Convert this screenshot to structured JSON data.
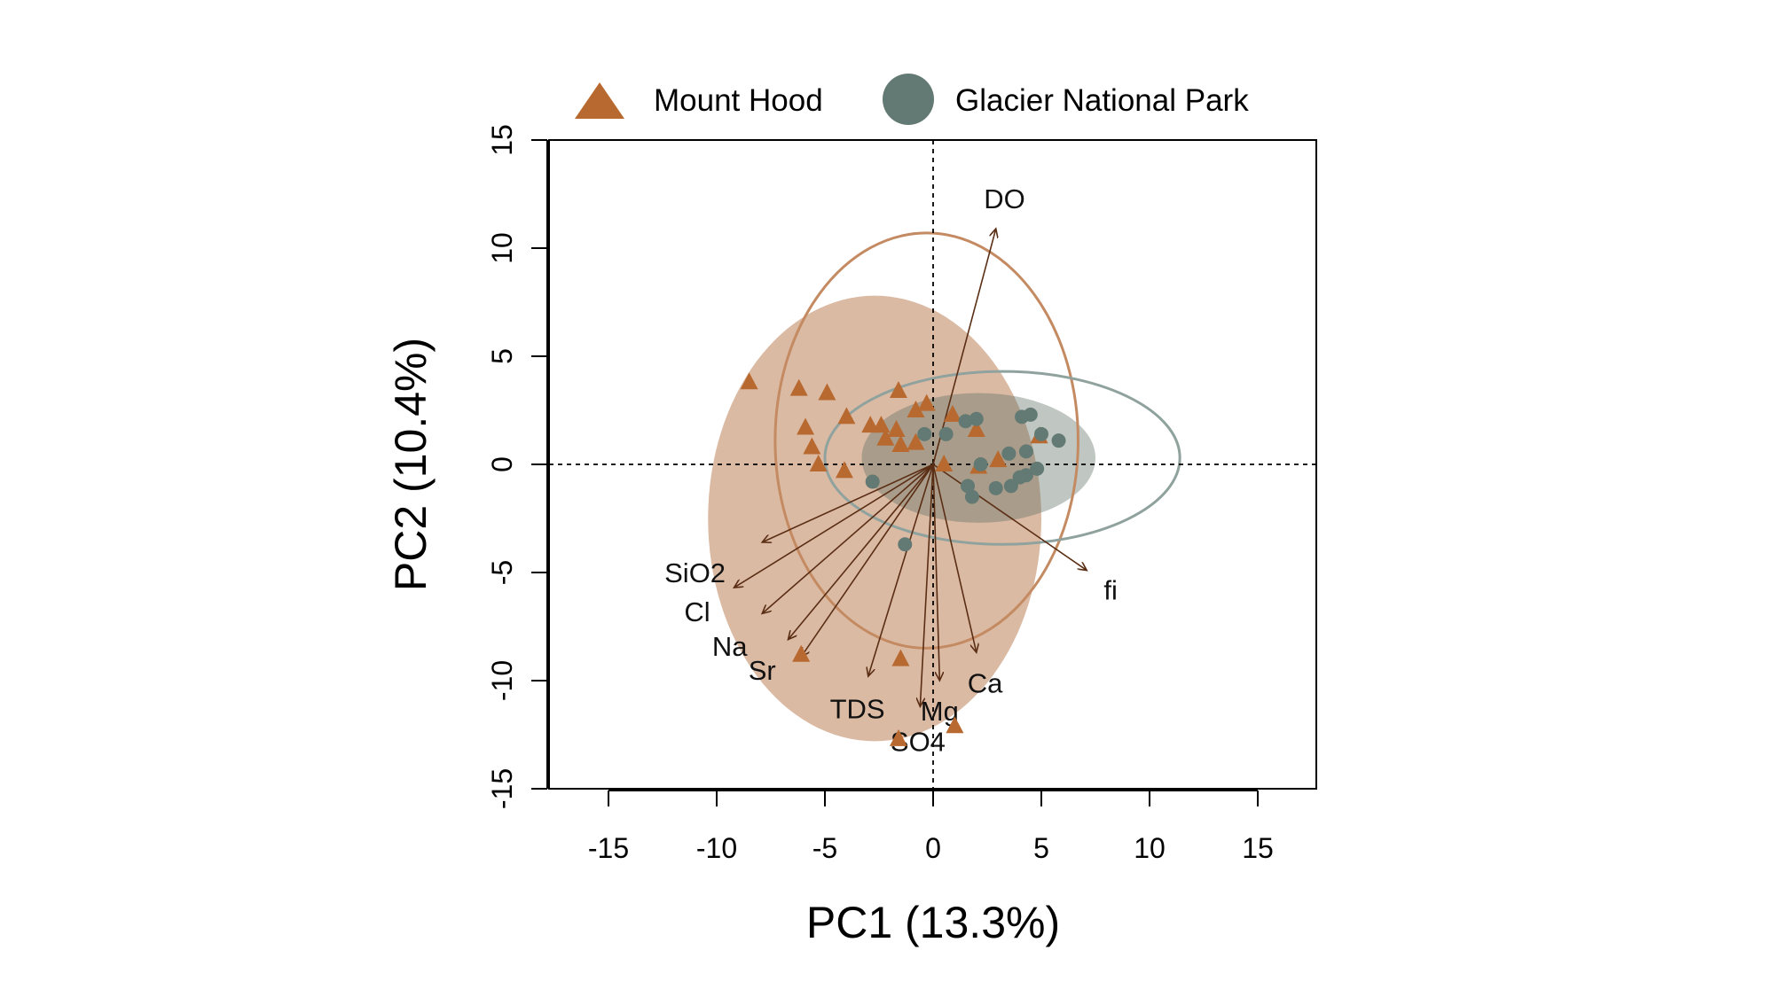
{
  "chart_data": {
    "type": "scatter",
    "subtype": "pca-biplot",
    "title": "",
    "xlabel": "PC1 (13.3%)",
    "ylabel": "PC2 (10.4%)",
    "xlim": [
      -18,
      17.5
    ],
    "ylim": [
      -15,
      15
    ],
    "xticks": [
      -15,
      -10,
      -5,
      0,
      5,
      10,
      15
    ],
    "yticks": [
      -15,
      -10,
      -5,
      0,
      5,
      10,
      15
    ],
    "xtick_labels": [
      "-15",
      "-10",
      "-5",
      "0",
      "5",
      "10",
      "15"
    ],
    "ytick_labels": [
      "-15",
      "-10",
      "-5",
      "0",
      "5",
      "10",
      "15"
    ],
    "grid": false,
    "reference_lines": {
      "x": 0,
      "y": 0,
      "style": "dotted"
    },
    "legend": {
      "placement": "top",
      "entries": [
        {
          "label": "Mount Hood",
          "marker": "triangle",
          "color": "#b8692f"
        },
        {
          "label": "Glacier National Park",
          "marker": "circle",
          "color": "#627a73"
        }
      ]
    },
    "series": [
      {
        "name": "Mount Hood",
        "marker": "triangle",
        "color": "#b8692f",
        "points": [
          [
            -8.5,
            3.8
          ],
          [
            -6.2,
            3.5
          ],
          [
            -4.9,
            3.3
          ],
          [
            -5.9,
            1.7
          ],
          [
            -5.6,
            0.8
          ],
          [
            -5.3,
            0.0
          ],
          [
            -4.1,
            -0.3
          ],
          [
            -4.0,
            2.2
          ],
          [
            -2.9,
            1.8
          ],
          [
            -2.4,
            1.8
          ],
          [
            -2.2,
            1.2
          ],
          [
            -1.7,
            1.6
          ],
          [
            -1.6,
            3.4
          ],
          [
            -1.5,
            0.9
          ],
          [
            -0.8,
            1.0
          ],
          [
            -0.8,
            2.5
          ],
          [
            -0.3,
            2.8
          ],
          [
            0.5,
            0.0
          ],
          [
            0.9,
            2.3
          ],
          [
            2.0,
            1.6
          ],
          [
            2.1,
            -0.1
          ],
          [
            3.0,
            0.2
          ],
          [
            4.9,
            1.3
          ],
          [
            -6.1,
            -8.8
          ],
          [
            -1.5,
            -9.0
          ],
          [
            1.0,
            -12.1
          ],
          [
            -1.6,
            -12.7
          ]
        ],
        "ellipse": {
          "center": [
            -2.7,
            -2.5
          ],
          "semi_axes": [
            7.7,
            10.3
          ]
        },
        "confidence_ellipse": {
          "center": [
            -0.3,
            1.1
          ],
          "semi_axes": [
            7.0,
            9.6
          ]
        }
      },
      {
        "name": "Glacier National Park",
        "marker": "circle",
        "color": "#627a73",
        "points": [
          [
            -0.4,
            1.4
          ],
          [
            0.6,
            1.4
          ],
          [
            1.5,
            2.0
          ],
          [
            2.0,
            2.1
          ],
          [
            4.1,
            2.2
          ],
          [
            4.5,
            2.3
          ],
          [
            5.0,
            1.4
          ],
          [
            5.8,
            1.1
          ],
          [
            3.5,
            0.5
          ],
          [
            4.3,
            0.6
          ],
          [
            2.2,
            0.0
          ],
          [
            4.8,
            -0.2
          ],
          [
            4.3,
            -0.5
          ],
          [
            4.0,
            -0.6
          ],
          [
            3.6,
            -1.0
          ],
          [
            2.9,
            -1.1
          ],
          [
            1.6,
            -1.0
          ],
          [
            1.8,
            -1.5
          ],
          [
            -2.8,
            -0.8
          ],
          [
            -1.3,
            -3.7
          ]
        ],
        "ellipse": {
          "center": [
            2.1,
            0.3
          ],
          "semi_axes": [
            5.4,
            3.0
          ]
        },
        "confidence_ellipse": {
          "center": [
            3.2,
            0.3
          ],
          "semi_axes": [
            8.2,
            4.0
          ]
        }
      }
    ],
    "loadings": [
      {
        "label": "DO",
        "x": 2.9,
        "y": 10.9,
        "label_pos": [
          3.3,
          12.3
        ]
      },
      {
        "label": "fi",
        "x": 7.1,
        "y": -4.9,
        "label_pos": [
          8.2,
          -5.8
        ]
      },
      {
        "label": "SiO2",
        "x": -9.2,
        "y": -5.7,
        "label_pos": [
          -11.0,
          -5.0
        ]
      },
      {
        "label": "SiO2",
        "x": -7.9,
        "y": -3.6,
        "hidden_label": true
      },
      {
        "label": "Cl",
        "x": -7.9,
        "y": -6.9,
        "label_pos": [
          -10.9,
          -6.8
        ]
      },
      {
        "label": "Na",
        "x": -6.7,
        "y": -8.1,
        "label_pos": [
          -9.4,
          -8.4
        ]
      },
      {
        "label": "Sr",
        "x": -6.1,
        "y": -8.9,
        "label_pos": [
          -7.9,
          -9.5
        ]
      },
      {
        "label": "TDS",
        "x": -3.0,
        "y": -9.8,
        "label_pos": [
          -3.5,
          -11.3
        ]
      },
      {
        "label": "SO4",
        "x": -0.6,
        "y": -11.2,
        "label_pos": [
          -0.7,
          -12.8
        ]
      },
      {
        "label": "Mg",
        "x": 0.3,
        "y": -10.0,
        "label_pos": [
          0.3,
          -11.4
        ]
      },
      {
        "label": "Ca",
        "x": 2.0,
        "y": -8.7,
        "label_pos": [
          2.4,
          -10.1
        ]
      }
    ]
  }
}
